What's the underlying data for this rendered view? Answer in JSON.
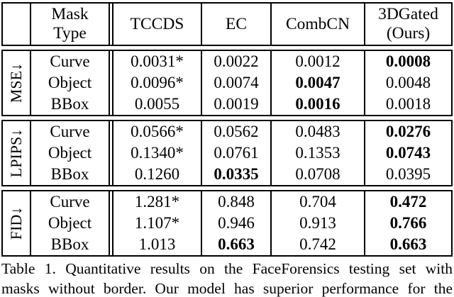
{
  "table": {
    "header": {
      "corner": "",
      "mask_type_line1": "Mask",
      "mask_type_line2": "Type",
      "col_tccds": "TCCDS",
      "col_ec": "EC",
      "col_combcn": "CombCN",
      "col_ours_line1": "3DGated",
      "col_ours_line2": "(Ours)"
    },
    "sections": [
      {
        "metric": "MSE↓",
        "rows": [
          {
            "mask": "Curve",
            "tccds": "0.0031*",
            "ec": "0.0022",
            "combcn": "0.0012",
            "ours": "0.0008",
            "best": "ours"
          },
          {
            "mask": "Object",
            "tccds": "0.0096*",
            "ec": "0.0074",
            "combcn": "0.0047",
            "ours": "0.0048",
            "best": "combcn"
          },
          {
            "mask": "BBox",
            "tccds": "0.0055",
            "ec": "0.0019",
            "combcn": "0.0016",
            "ours": "0.0018",
            "best": "combcn"
          }
        ]
      },
      {
        "metric": "LPIPS↓",
        "rows": [
          {
            "mask": "Curve",
            "tccds": "0.0566*",
            "ec": "0.0562",
            "combcn": "0.0483",
            "ours": "0.0276",
            "best": "ours"
          },
          {
            "mask": "Object",
            "tccds": "0.1340*",
            "ec": "0.0761",
            "combcn": "0.1353",
            "ours": "0.0743",
            "best": "ours"
          },
          {
            "mask": "BBox",
            "tccds": "0.1260",
            "ec": "0.0335",
            "combcn": "0.0708",
            "ours": "0.0395",
            "best": "ec"
          }
        ]
      },
      {
        "metric": "FID↓",
        "rows": [
          {
            "mask": "Curve",
            "tccds": "1.281*",
            "ec": "0.848",
            "combcn": "0.704",
            "ours": "0.472",
            "best": "ours"
          },
          {
            "mask": "Object",
            "tccds": "1.107*",
            "ec": "0.946",
            "combcn": "0.913",
            "ours": "0.766",
            "best": "ours"
          },
          {
            "mask": "BBox",
            "tccds": "1.013",
            "ec": "0.663",
            "combcn": "0.742",
            "ours": "0.663",
            "best": "ec,ours"
          }
        ]
      }
    ]
  },
  "caption": {
    "line1": "Table 1. Quantitative results on the FaceForensics testing set with",
    "line2": "masks without border. Our model has superior performance for the"
  }
}
